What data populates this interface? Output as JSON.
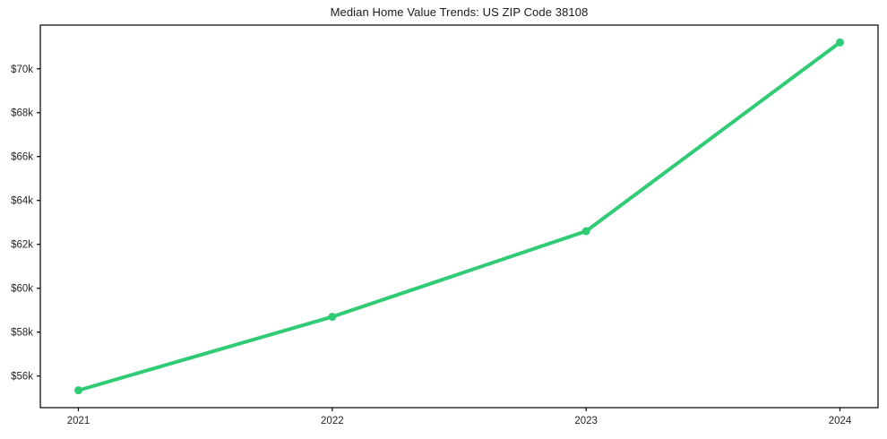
{
  "chart_data": {
    "type": "line",
    "title": "Median Home Value Trends: US ZIP Code 38108",
    "x": [
      2021,
      2022,
      2023,
      2024
    ],
    "values": [
      55350,
      58700,
      62600,
      71200
    ],
    "xtick_labels": [
      "2021",
      "2022",
      "2023",
      "2024"
    ],
    "yticks": [
      56000,
      58000,
      60000,
      62000,
      64000,
      66000,
      68000,
      70000
    ],
    "ytick_labels": [
      "$56k",
      "$58k",
      "$60k",
      "$62k",
      "$64k",
      "$66k",
      "$68k",
      "$70k"
    ],
    "xlabel": "",
    "ylabel": "",
    "xlim": [
      2020.85,
      2024.15
    ],
    "ylim": [
      54560,
      71990
    ],
    "grid": false,
    "legend": "none",
    "line_color": "#2fcb75",
    "line_width": 4,
    "marker": "circle",
    "marker_radius": 4.5,
    "axis_color": "#000000",
    "background_color": "#ffffff"
  }
}
